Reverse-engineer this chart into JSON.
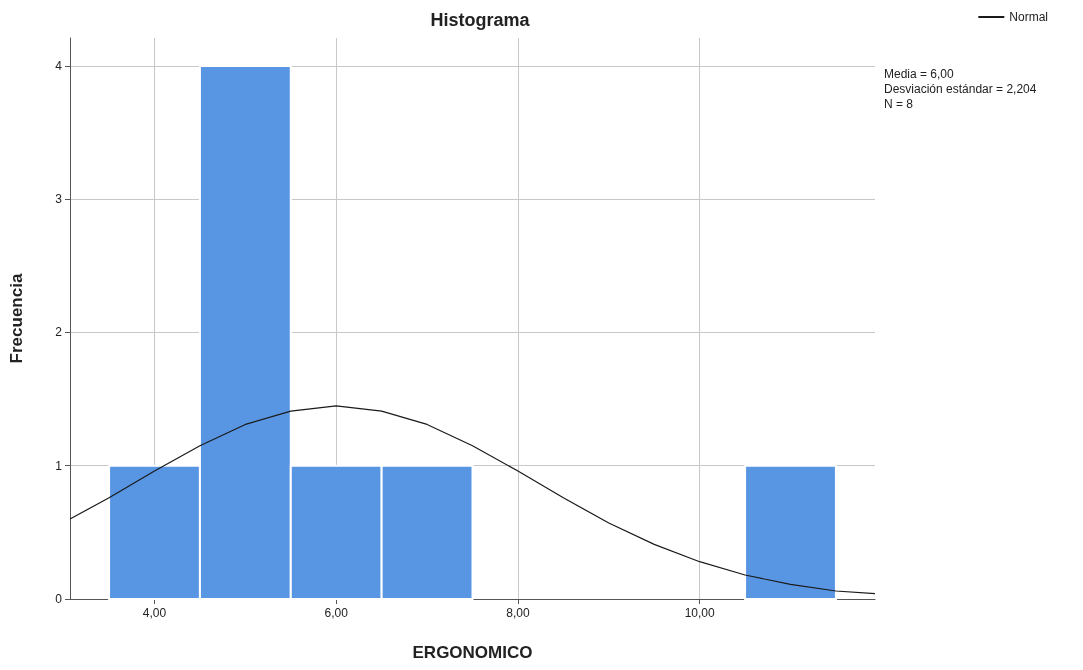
{
  "chart_data": {
    "type": "histogram",
    "title": "Histograma",
    "xlabel": "ERGONOMICO",
    "ylabel": "Frecuencia",
    "bins": [
      3.5,
      4.5,
      5.5,
      6.5,
      7.5,
      8.5,
      9.5,
      10.5,
      11.5
    ],
    "values": [
      1,
      4,
      1,
      1,
      0,
      0,
      0,
      1
    ],
    "color": "#5896e3",
    "series": [
      {
        "type": "line",
        "name": "Normal",
        "color": "#1a1a1a",
        "x": [
          3.07,
          3.5,
          4,
          4.5,
          5,
          5.5,
          6,
          6.5,
          7,
          7.5,
          8,
          8.5,
          9,
          9.5,
          10,
          10.5,
          11,
          11.5,
          11.93
        ],
        "values": [
          0.6,
          0.76,
          0.96,
          1.15,
          1.31,
          1.41,
          1.45,
          1.41,
          1.31,
          1.15,
          0.96,
          0.76,
          0.57,
          0.41,
          0.28,
          0.18,
          0.11,
          0.06,
          0.04
        ]
      }
    ],
    "xlim": [
      3.07,
      11.93
    ],
    "xticks": [
      {
        "value": 4,
        "label": "4,00"
      },
      {
        "value": 6,
        "label": "6,00"
      },
      {
        "value": 8,
        "label": "8,00"
      },
      {
        "value": 10,
        "label": "10,00"
      }
    ],
    "ylim": [
      0,
      4.21
    ],
    "yticks": [
      0,
      1,
      2,
      3,
      4
    ],
    "grid": true,
    "legend": "top right",
    "marker": "none",
    "annotations": [
      "Media = 6,00",
      "Desviación estándar = 2,204",
      "N = 8"
    ]
  }
}
